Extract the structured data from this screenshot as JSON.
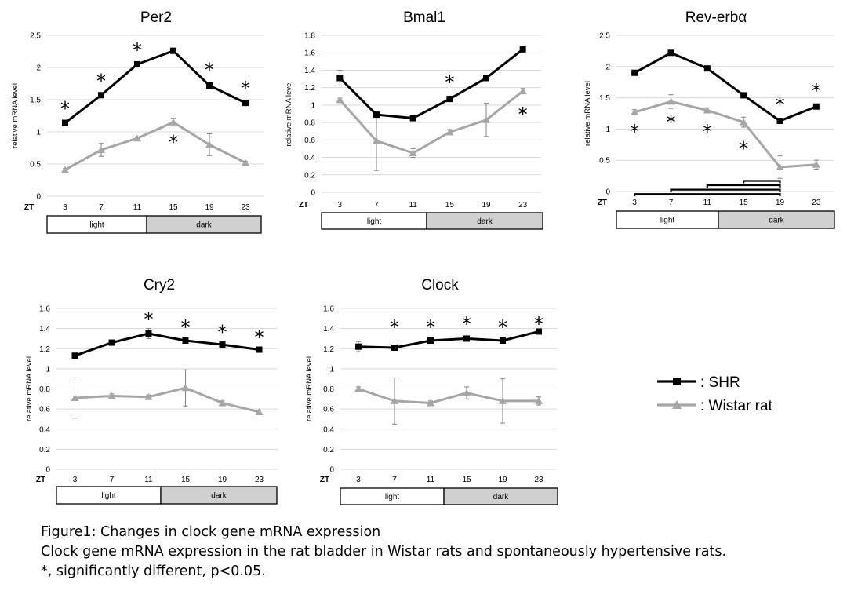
{
  "chart_data": [
    {
      "type": "line",
      "title": "Per2",
      "ylabel": "relative mRNA level",
      "xlabel": "ZT",
      "x": [
        3,
        7,
        11,
        15,
        19,
        23
      ],
      "ylim": [
        0,
        2.5
      ],
      "yticks": [
        0,
        0.5,
        1,
        1.5,
        2,
        2.5
      ],
      "ytick_labels": [
        "0",
        "0.5",
        "1",
        "1.5",
        "2",
        "2.5"
      ],
      "series": [
        {
          "name": "SHR",
          "values": [
            1.14,
            1.57,
            2.05,
            2.26,
            1.72,
            1.45
          ],
          "errors": [
            0.02,
            0.02,
            0.02,
            0.02,
            0.04,
            0.02
          ]
        },
        {
          "name": "Wistar rat",
          "values": [
            0.41,
            0.72,
            0.9,
            1.15,
            0.8,
            0.52
          ],
          "errors": [
            0.02,
            0.1,
            0.02,
            0.06,
            0.17,
            0.02
          ]
        }
      ],
      "asterisks": [
        {
          "x": 3,
          "y": 1.37
        },
        {
          "x": 7,
          "y": 1.8
        },
        {
          "x": 11,
          "y": 2.28
        },
        {
          "x": 15,
          "y": 0.85
        },
        {
          "x": 19,
          "y": 1.97
        },
        {
          "x": 23,
          "y": 1.68
        }
      ],
      "phase_bar": {
        "light": "light",
        "dark": "dark"
      }
    },
    {
      "type": "line",
      "title": "Bmal1",
      "ylabel": "relative mRNA level",
      "xlabel": "ZT",
      "x": [
        3,
        7,
        11,
        15,
        19,
        23
      ],
      "ylim": [
        0,
        1.8
      ],
      "yticks": [
        0,
        0.2,
        0.4,
        0.6,
        0.8,
        1,
        1.2,
        1.4,
        1.6,
        1.8
      ],
      "ytick_labels": [
        "0",
        "0.2",
        "0.4",
        "0.6",
        "0.8",
        "1",
        "1.2",
        "1.4",
        "1.6",
        "1.8"
      ],
      "series": [
        {
          "name": "SHR",
          "values": [
            1.31,
            0.89,
            0.85,
            1.07,
            1.31,
            1.64
          ],
          "errors": [
            0.09,
            0.02,
            0.02,
            0.03,
            0.03,
            0.03
          ]
        },
        {
          "name": "Wistar rat",
          "values": [
            1.06,
            0.59,
            0.45,
            0.69,
            0.83,
            1.16
          ],
          "errors": [
            0.02,
            0.34,
            0.05,
            0.03,
            0.19,
            0.03
          ]
        }
      ],
      "asterisks": [
        {
          "x": 15,
          "y": 1.27
        },
        {
          "x": 23,
          "y": 0.9
        }
      ],
      "phase_bar": {
        "light": "light",
        "dark": "dark"
      }
    },
    {
      "type": "line",
      "title": "Rev-erbα",
      "ylabel": "relative mRNA level",
      "xlabel": "ZT",
      "x": [
        3,
        7,
        11,
        15,
        19,
        23
      ],
      "ylim": [
        0,
        2.5
      ],
      "yticks": [
        0,
        0.5,
        1,
        1.5,
        2,
        2.5
      ],
      "ytick_labels": [
        "0",
        "0.5",
        "1",
        "1.5",
        "2",
        "2.5"
      ],
      "series": [
        {
          "name": "SHR",
          "values": [
            1.9,
            2.22,
            1.97,
            1.54,
            1.13,
            1.36
          ],
          "errors": [
            0.02,
            0.02,
            0.02,
            0.02,
            0.02,
            0.02
          ]
        },
        {
          "name": "Wistar rat",
          "values": [
            1.27,
            1.44,
            1.3,
            1.11,
            0.39,
            0.43
          ],
          "errors": [
            0.04,
            0.11,
            0.04,
            0.08,
            0.18,
            0.07
          ]
        }
      ],
      "asterisks": [
        {
          "x": 3,
          "y": 0.97
        },
        {
          "x": 7,
          "y": 1.12
        },
        {
          "x": 11,
          "y": 0.97
        },
        {
          "x": 15,
          "y": 0.7
        },
        {
          "x": 19,
          "y": 1.4
        },
        {
          "x": 23,
          "y": 1.62
        }
      ],
      "brackets": [
        {
          "from": 3,
          "to": 19,
          "y": -0.04
        },
        {
          "from": 7,
          "to": 19,
          "y": 0.03
        },
        {
          "from": 11,
          "to": 19,
          "y": 0.1
        },
        {
          "from": 15,
          "to": 19,
          "y": 0.17
        }
      ],
      "phase_bar": {
        "light": "light",
        "dark": "dark"
      }
    },
    {
      "type": "line",
      "title": "Cry2",
      "ylabel": "relative mRNA level",
      "xlabel": "ZT",
      "x": [
        3,
        7,
        11,
        15,
        19,
        23
      ],
      "ylim": [
        0,
        1.6
      ],
      "yticks": [
        0,
        0.2,
        0.4,
        0.6,
        0.8,
        1,
        1.2,
        1.4,
        1.6
      ],
      "ytick_labels": [
        "0",
        "0.2",
        "0.4",
        "0.6",
        "0.8",
        "1",
        "1.2",
        "1.4",
        "1.6"
      ],
      "series": [
        {
          "name": "SHR",
          "values": [
            1.13,
            1.26,
            1.35,
            1.28,
            1.24,
            1.19
          ],
          "errors": [
            0.02,
            0.02,
            0.05,
            0.02,
            0.02,
            0.02
          ]
        },
        {
          "name": "Wistar rat",
          "values": [
            0.71,
            0.73,
            0.72,
            0.81,
            0.66,
            0.57
          ],
          "errors": [
            0.2,
            0.02,
            0.02,
            0.18,
            0.02,
            0.02
          ]
        }
      ],
      "asterisks": [
        {
          "x": 11,
          "y": 1.5
        },
        {
          "x": 15,
          "y": 1.42
        },
        {
          "x": 19,
          "y": 1.37
        },
        {
          "x": 23,
          "y": 1.32
        }
      ],
      "phase_bar": {
        "light": "light",
        "dark": "dark"
      }
    },
    {
      "type": "line",
      "title": "Clock",
      "ylabel": "relative mRNA level",
      "xlabel": "ZT",
      "x": [
        3,
        7,
        11,
        15,
        19,
        23
      ],
      "ylim": [
        0,
        1.6
      ],
      "yticks": [
        0,
        0.2,
        0.4,
        0.6,
        0.8,
        1,
        1.2,
        1.4,
        1.6
      ],
      "ytick_labels": [
        "0",
        "0.2",
        "0.4",
        "0.6",
        "0.8",
        "1",
        "1.2",
        "1.4",
        "1.6"
      ],
      "series": [
        {
          "name": "SHR",
          "values": [
            1.22,
            1.21,
            1.28,
            1.3,
            1.28,
            1.37
          ],
          "errors": [
            0.05,
            0.02,
            0.02,
            0.02,
            0.02,
            0.02
          ]
        },
        {
          "name": "Wistar rat",
          "values": [
            0.8,
            0.68,
            0.66,
            0.76,
            0.68,
            0.68
          ],
          "errors": [
            0.02,
            0.23,
            0.02,
            0.06,
            0.22,
            0.04
          ]
        }
      ],
      "asterisks": [
        {
          "x": 7,
          "y": 1.42
        },
        {
          "x": 11,
          "y": 1.42
        },
        {
          "x": 15,
          "y": 1.45
        },
        {
          "x": 19,
          "y": 1.42
        },
        {
          "x": 23,
          "y": 1.45
        }
      ],
      "phase_bar": {
        "light": "light",
        "dark": "dark"
      }
    }
  ],
  "legend": {
    "entries": [
      {
        "label": ": SHR",
        "color": "#000000"
      },
      {
        "label": ": Wistar rat",
        "color": "#a6a6a6"
      }
    ]
  },
  "caption": {
    "line1": "Figure1: Changes in clock gene mRNA expression",
    "line2": "Clock gene mRNA expression in the rat bladder in Wistar rats and spontaneously hypertensive rats.",
    "line3": "*, significantly different, p<0.05."
  },
  "colors": {
    "shr": "#000000",
    "wistar": "#a6a6a6",
    "dark_phase": "#d0d0d0",
    "grid": "#d9d9d9"
  }
}
